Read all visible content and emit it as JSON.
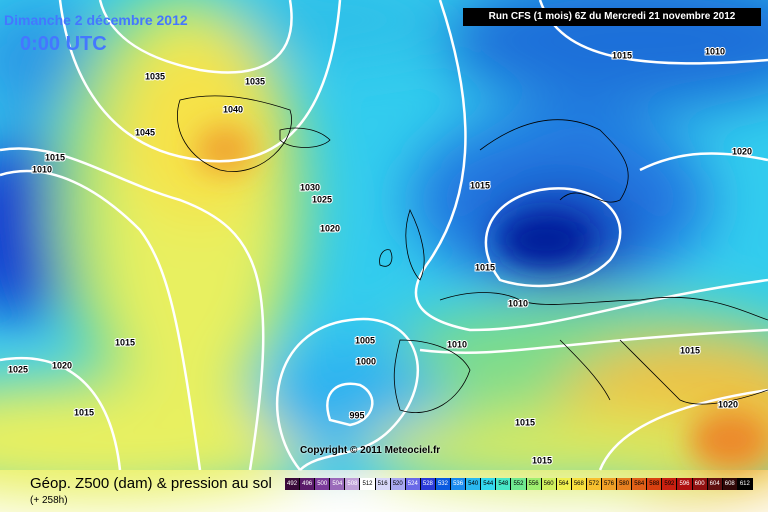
{
  "header": {
    "date": "Dimanche 2 décembre 2012",
    "time": "0:00 UTC",
    "run": "Run CFS (1 mois) 6Z du Mercredi 21 novembre 2012"
  },
  "isobar_labels": [
    1035,
    1035,
    1040,
    1045,
    1015,
    1010,
    1030,
    1025,
    1020,
    1015,
    1015,
    1010,
    1010,
    1005,
    1000,
    995,
    1015,
    1025,
    1020,
    1015,
    1015,
    1015,
    1015,
    1020,
    1020,
    1015,
    1010
  ],
  "copyright": "Copyright © 2011 Meteociel.fr",
  "footer": {
    "title": "Géop. Z500 (dam) & pression au sol",
    "lead": "(+ 258h)"
  },
  "scale": [
    492,
    496,
    500,
    504,
    508,
    512,
    516,
    520,
    524,
    528,
    532,
    536,
    540,
    544,
    548,
    552,
    556,
    560,
    564,
    568,
    572,
    576,
    580,
    584,
    588,
    592,
    596,
    600,
    604,
    608,
    612
  ]
}
